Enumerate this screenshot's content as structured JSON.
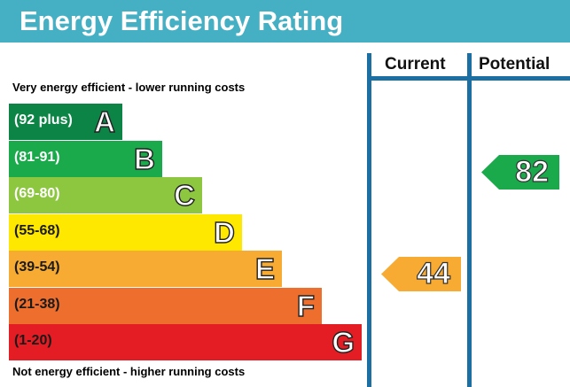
{
  "header": {
    "title": "Energy Efficiency Rating"
  },
  "notes": {
    "top": "Very energy efficient - lower running costs",
    "bottom": "Not energy efficient - higher running costs"
  },
  "columns": {
    "current": "Current",
    "potential": "Potential"
  },
  "bands": [
    {
      "range": "(92 plus)",
      "letter": "A",
      "color": "#0b8445"
    },
    {
      "range": "(81-91)",
      "letter": "B",
      "color": "#1aaa4b"
    },
    {
      "range": "(69-80)",
      "letter": "C",
      "color": "#8dc63f"
    },
    {
      "range": "(55-68)",
      "letter": "D",
      "color": "#ffe800"
    },
    {
      "range": "(39-54)",
      "letter": "E",
      "color": "#f7ab32"
    },
    {
      "range": "(21-38)",
      "letter": "F",
      "color": "#ee6f2d"
    },
    {
      "range": "(1-20)",
      "letter": "G",
      "color": "#e31d23"
    }
  ],
  "ratings": {
    "current": {
      "value": "44",
      "color": "#f7ab32"
    },
    "potential": {
      "value": "82",
      "color": "#1aaa4b"
    }
  }
}
